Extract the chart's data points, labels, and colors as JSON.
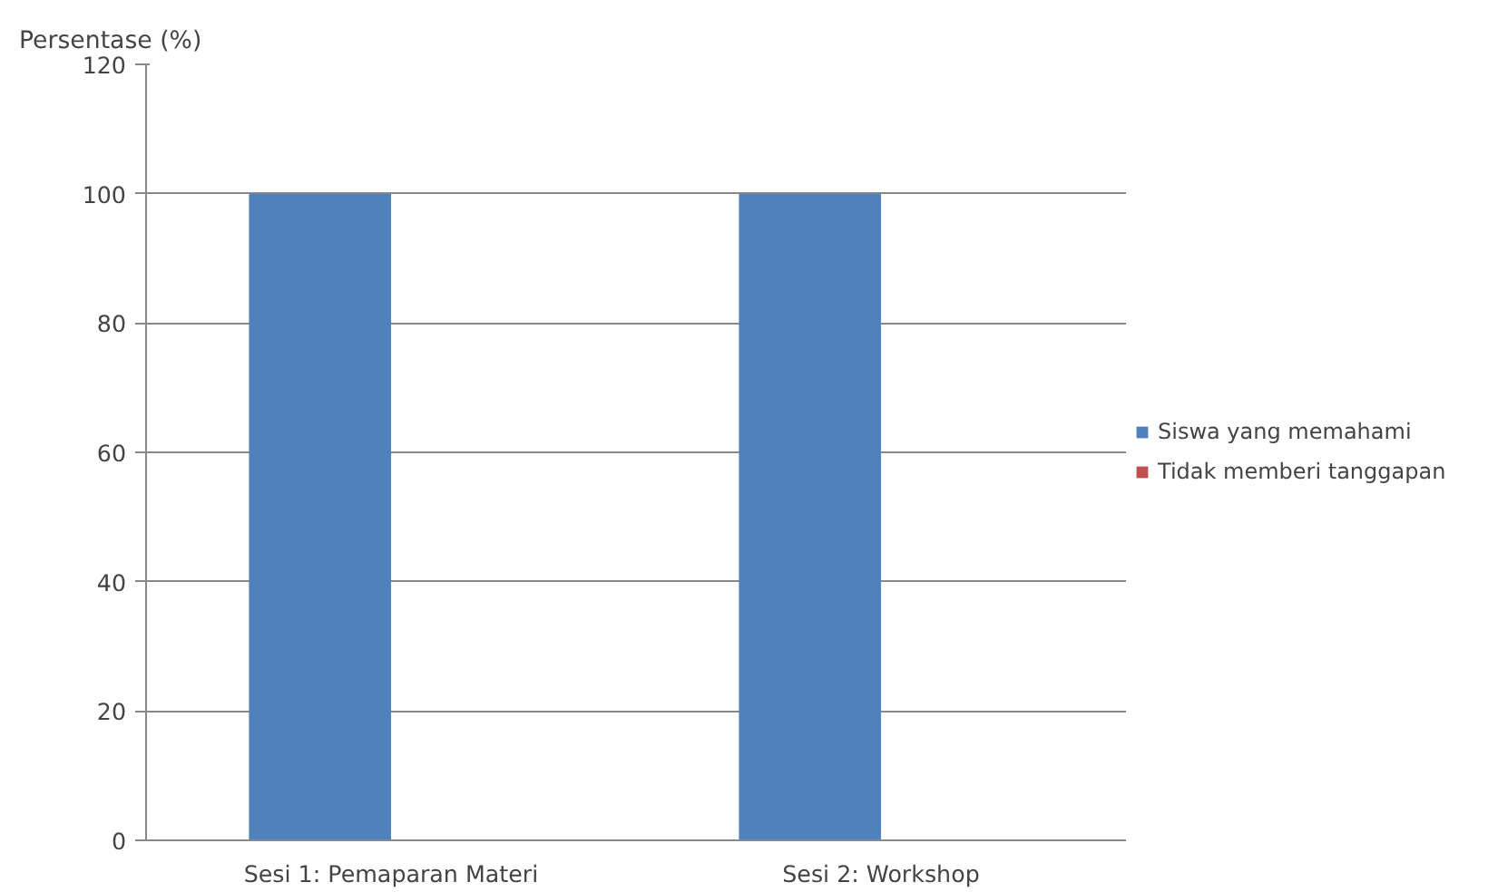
{
  "chart_data": {
    "type": "bar",
    "ylabel": "Persentase (%)",
    "categories": [
      "Sesi 1: Pemaparan Materi",
      "Sesi 2: Workshop"
    ],
    "series": [
      {
        "name": "Siswa yang memahami",
        "color": "#4f81bd",
        "values": [
          100,
          100
        ]
      },
      {
        "name": "Tidak memberi tanggapan",
        "color": "#c0504d",
        "values": [
          0,
          0
        ]
      }
    ],
    "ylim": [
      0,
      120
    ],
    "yticks": [
      0,
      20,
      40,
      60,
      80,
      100,
      120
    ],
    "grid": "y",
    "legend": "right"
  }
}
